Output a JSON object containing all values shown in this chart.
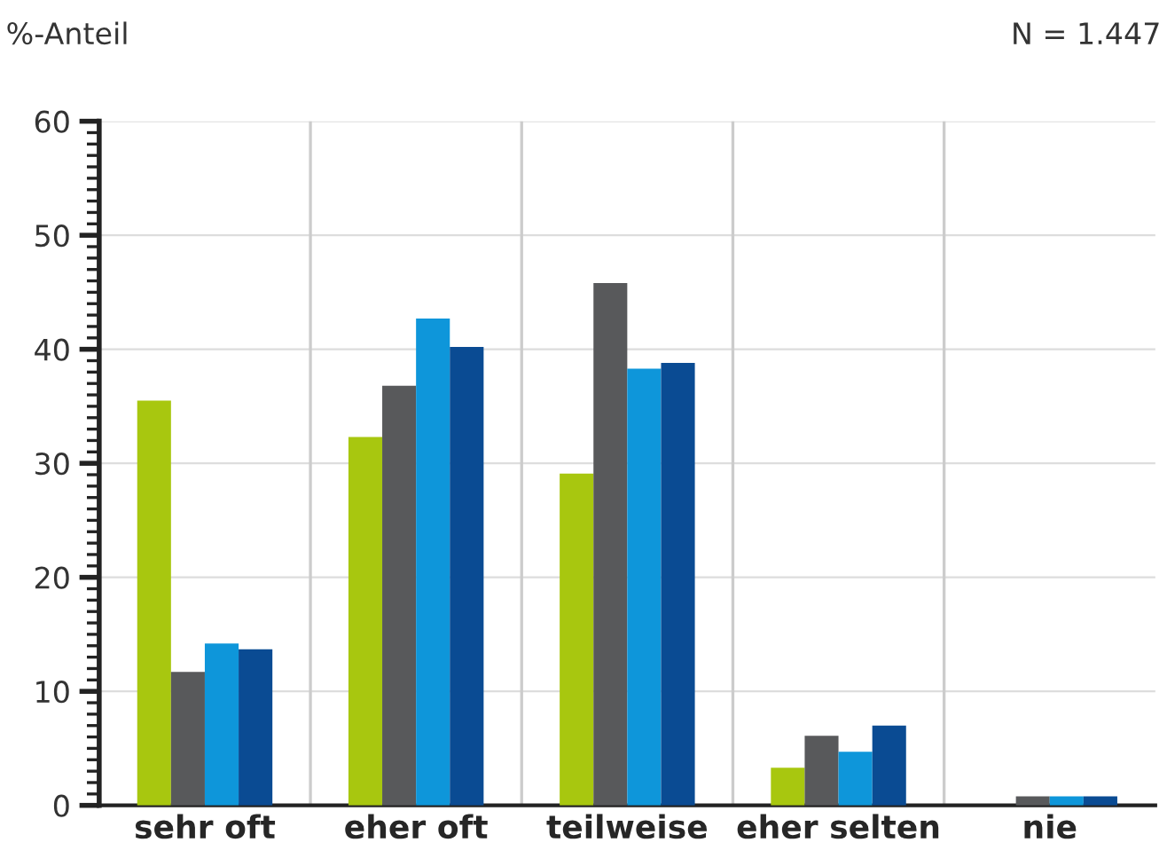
{
  "chart_data": {
    "type": "bar",
    "ylabel": "%-Anteil",
    "annotations": [
      "N = 1.447"
    ],
    "categories": [
      "sehr oft",
      "eher oft",
      "teilweise",
      "eher selten",
      "nie"
    ],
    "series": [
      {
        "color": "#a8c70f",
        "values": [
          35.5,
          32.3,
          29.1,
          3.3,
          null
        ]
      },
      {
        "color": "#58595b",
        "values": [
          11.7,
          36.8,
          45.8,
          6.1,
          0.8
        ]
      },
      {
        "color": "#0e96da",
        "values": [
          14.2,
          42.7,
          38.3,
          4.7,
          0.8
        ]
      },
      {
        "color": "#0a4b93",
        "values": [
          13.7,
          40.2,
          38.8,
          7.0,
          0.8
        ]
      }
    ],
    "ylim": [
      0,
      60
    ],
    "yticks": [
      0,
      10,
      20,
      30,
      40,
      50,
      60
    ],
    "grid": true,
    "legend": false
  }
}
